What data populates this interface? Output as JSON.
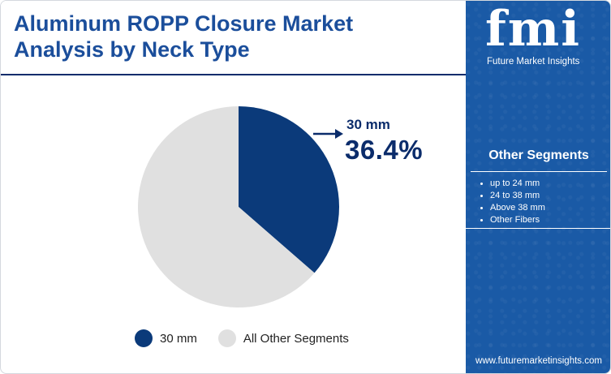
{
  "header": {
    "title_line1": "Aluminum ROPP Closure Market",
    "title_line2": "Analysis by Neck Type"
  },
  "brand": {
    "logo": "fmi",
    "name": "Future Market Insights",
    "website": "www.futuremarketinsights.com"
  },
  "sidebar": {
    "title": "Other Segments",
    "items": [
      "up to 24 mm",
      "24 to 38 mm",
      "Above 38 mm",
      "Other Fibers"
    ]
  },
  "callout": {
    "label": "30 mm",
    "value": "36.4%"
  },
  "chart_data": {
    "type": "pie",
    "title": "Aluminum ROPP Closure Market Analysis by Neck Type",
    "slices": [
      {
        "label": "30 mm",
        "value": 36.4,
        "color": "#0b3a7a"
      },
      {
        "label": "All Other Segments",
        "value": 63.6,
        "color": "#e0e0e0"
      }
    ],
    "legend": [
      "30 mm",
      "All Other Segments"
    ],
    "legend_position": "bottom"
  },
  "colors": {
    "accent": "#0b3a7a",
    "title": "#1b4e9b",
    "sidebar_bg": "#1a5aa6",
    "other": "#e0e0e0"
  }
}
